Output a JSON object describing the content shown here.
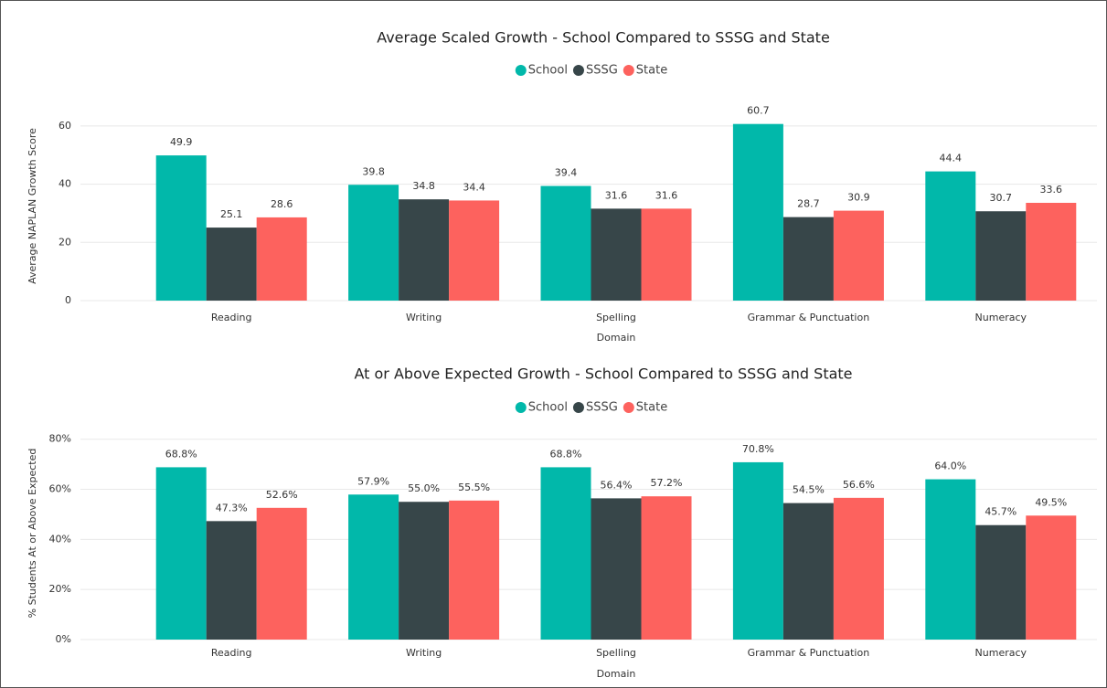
{
  "chart_data": [
    {
      "type": "bar",
      "title": "Average Scaled Growth - School Compared to SSSG and State",
      "y_label": "Average NAPLAN Growth Score",
      "x_label": "Domain",
      "categories": [
        "Reading",
        "Writing",
        "Spelling",
        "Grammar & Punctuation",
        "Numeracy"
      ],
      "series": [
        {
          "name": "School",
          "color": "#01B8AA",
          "values": [
            49.9,
            39.8,
            39.4,
            60.7,
            44.4
          ]
        },
        {
          "name": "SSSG",
          "color": "#374649",
          "values": [
            25.1,
            34.8,
            31.6,
            28.7,
            30.7
          ]
        },
        {
          "name": "State",
          "color": "#FD625E",
          "values": [
            28.6,
            34.4,
            31.6,
            30.9,
            33.6
          ]
        }
      ],
      "ylim": [
        0,
        65
      ],
      "yticks": [
        0,
        20,
        40,
        60
      ],
      "grid": true
    },
    {
      "type": "bar",
      "title": "At or Above Expected Growth - School Compared to SSSG and State",
      "y_label": "% Students At or Above Expected",
      "x_label": "Domain",
      "categories": [
        "Reading",
        "Writing",
        "Spelling",
        "Grammar & Punctuation",
        "Numeracy"
      ],
      "series": [
        {
          "name": "School",
          "color": "#01B8AA",
          "values": [
            68.8,
            57.9,
            68.8,
            70.8,
            64.0
          ],
          "value_labels": [
            "68.8%",
            "57.9%",
            "68.8%",
            "70.8%",
            "64.0%"
          ]
        },
        {
          "name": "SSSG",
          "color": "#374649",
          "values": [
            47.3,
            55.0,
            56.4,
            54.5,
            45.7
          ],
          "value_labels": [
            "47.3%",
            "55.0%",
            "56.4%",
            "54.5%",
            "45.7%"
          ]
        },
        {
          "name": "State",
          "color": "#FD625E",
          "values": [
            52.6,
            55.5,
            57.2,
            56.6,
            49.5
          ],
          "value_labels": [
            "52.6%",
            "55.5%",
            "57.2%",
            "56.6%",
            "49.5%"
          ]
        }
      ],
      "ylim": [
        0,
        85
      ],
      "yticks": [
        {
          "value": 0,
          "label": "0%"
        },
        {
          "value": 20,
          "label": "20%"
        },
        {
          "value": 40,
          "label": "40%"
        },
        {
          "value": 60,
          "label": "60%"
        },
        {
          "value": 80,
          "label": "80%"
        }
      ],
      "grid": true
    }
  ]
}
